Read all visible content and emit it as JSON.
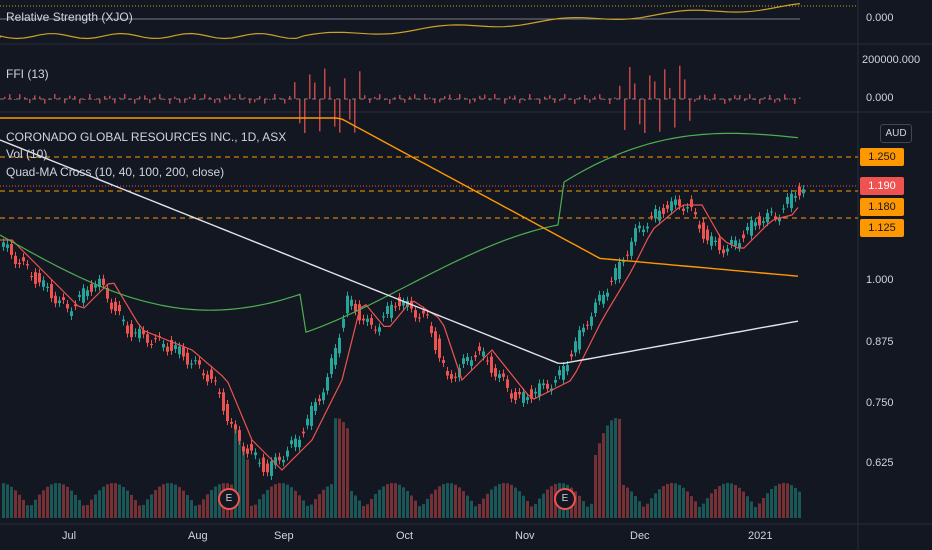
{
  "panes": {
    "relative_strength": {
      "label": "Relative Strength (XJO)",
      "axis": [
        "0.000"
      ]
    },
    "ffi": {
      "label": "FFI (13)",
      "axis": [
        "200000.000",
        "0.000"
      ]
    },
    "main": {
      "title": "CORONADO GLOBAL RESOURCES INC., 1D, ASX",
      "vol_label": "Vol (10)",
      "ma_label": "Quad-MA Cross (10, 40, 100, 200, close)",
      "currency": "AUD",
      "axis": [
        "1.000",
        "0.875",
        "0.750",
        "0.625"
      ]
    }
  },
  "price_tags": [
    {
      "value": "1.250",
      "color": "#ff9800",
      "text_color": "#131722"
    },
    {
      "value": "1.190",
      "color": "#ef5350",
      "text_color": "#ffffff"
    },
    {
      "value": "1.180",
      "color": "#ff9800",
      "text_color": "#131722"
    },
    {
      "value": "1.125",
      "color": "#ff9800",
      "text_color": "#131722"
    }
  ],
  "x_axis": [
    "Jul",
    "Aug",
    "Sep",
    "Oct",
    "Nov",
    "Dec",
    "2021"
  ],
  "events": [
    "E",
    "E"
  ],
  "colors": {
    "background": "#131722",
    "up": "#26a69a",
    "down": "#ef5350",
    "ma10": "#ef5350",
    "ma40": "#4caf50",
    "ma100": "#e0e3eb",
    "ma200": "#ff9800",
    "rs_line": "#c9a227",
    "levels": "#ff9800"
  }
}
